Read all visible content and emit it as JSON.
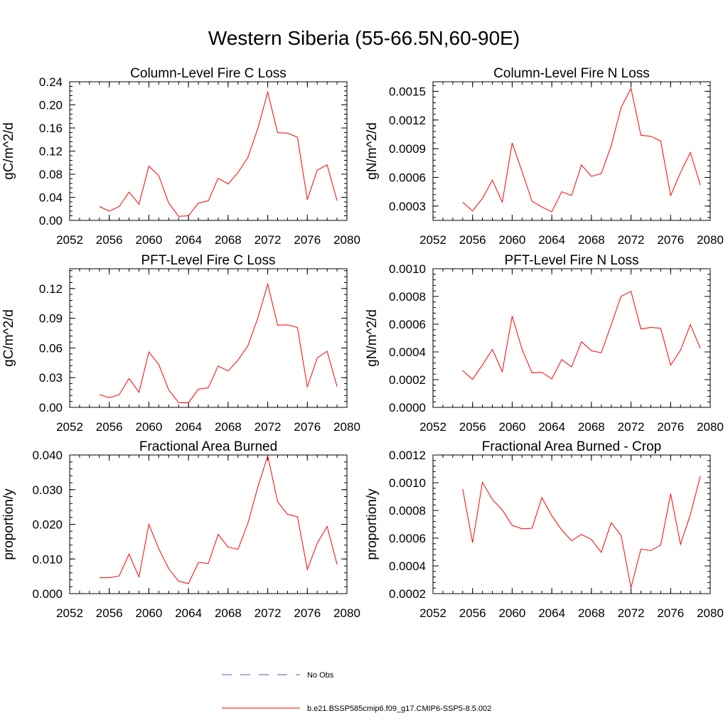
{
  "page": {
    "title": "Western Siberia (55-66.5N,60-90E)"
  },
  "colors": {
    "model": "#ff0000",
    "obs": "#5555aa",
    "axis": "#000000"
  },
  "legend": {
    "obs_label": "No Obs",
    "model_label": "b.e21.BSSP585cmip6.f09_g17.CMIP6-SSP5-8.5.002"
  },
  "chart_data": [
    {
      "type": "line",
      "title": "Column-Level Fire C Loss",
      "xlabel": "",
      "ylabel": "gC/m^2/d",
      "xlim": [
        2052,
        2080
      ],
      "ylim": [
        0,
        0.24
      ],
      "xticks": [
        2052,
        2056,
        2060,
        2064,
        2068,
        2072,
        2076,
        2080
      ],
      "yticks": [
        0,
        0.04,
        0.08,
        0.12,
        0.16,
        0.2,
        0.24
      ],
      "yticklabels": [
        "0.00",
        "0.04",
        "0.08",
        "0.12",
        "0.16",
        "0.20",
        "0.24"
      ],
      "x": [
        2055,
        2056,
        2057,
        2058,
        2059,
        2060,
        2061,
        2062,
        2063,
        2064,
        2065,
        2066,
        2067,
        2068,
        2069,
        2070,
        2071,
        2072,
        2073,
        2074,
        2075,
        2076,
        2077,
        2078,
        2079
      ],
      "series": [
        {
          "name": "b.e21.BSSP585cmip6.f09_g17.CMIP6-SSP5-8.5.002",
          "values": [
            0.024,
            0.016,
            0.024,
            0.049,
            0.028,
            0.094,
            0.077,
            0.03,
            0.007,
            0.008,
            0.03,
            0.034,
            0.073,
            0.063,
            0.083,
            0.109,
            0.159,
            0.222,
            0.152,
            0.151,
            0.144,
            0.036,
            0.087,
            0.096,
            0.034
          ]
        }
      ]
    },
    {
      "type": "line",
      "title": "Column-Level Fire N Loss",
      "xlabel": "",
      "ylabel": "gN/m^2/d",
      "xlim": [
        2052,
        2080
      ],
      "ylim": [
        0.00015,
        0.0016
      ],
      "xticks": [
        2052,
        2056,
        2060,
        2064,
        2068,
        2072,
        2076,
        2080
      ],
      "yticks": [
        0.0003,
        0.0006,
        0.0009,
        0.0012,
        0.0015
      ],
      "yticklabels": [
        "0.0003",
        "0.0006",
        "0.0009",
        "0.0012",
        "0.0015"
      ],
      "x": [
        2055,
        2056,
        2057,
        2058,
        2059,
        2060,
        2061,
        2062,
        2063,
        2064,
        2065,
        2066,
        2067,
        2068,
        2069,
        2070,
        2071,
        2072,
        2073,
        2074,
        2075,
        2076,
        2077,
        2078,
        2079
      ],
      "series": [
        {
          "name": "b.e21.BSSP585cmip6.f09_g17.CMIP6-SSP5-8.5.002",
          "values": [
            0.00034,
            0.00025,
            0.00038,
            0.00057,
            0.00034,
            0.00096,
            0.00066,
            0.00035,
            0.00029,
            0.00024,
            0.00045,
            0.00041,
            0.00073,
            0.00061,
            0.00064,
            0.00093,
            0.00133,
            0.00153,
            0.00104,
            0.00103,
            0.00098,
            0.00041,
            0.00065,
            0.00086,
            0.00052
          ]
        }
      ]
    },
    {
      "type": "line",
      "title": "PFT-Level Fire C Loss",
      "xlabel": "",
      "ylabel": "gC/m^2/d",
      "xlim": [
        2052,
        2080
      ],
      "ylim": [
        0,
        0.14
      ],
      "xticks": [
        2052,
        2056,
        2060,
        2064,
        2068,
        2072,
        2076,
        2080
      ],
      "yticks": [
        0,
        0.03,
        0.06,
        0.09,
        0.12
      ],
      "yticklabels": [
        "0.00",
        "0.03",
        "0.06",
        "0.09",
        "0.12"
      ],
      "x": [
        2055,
        2056,
        2057,
        2058,
        2059,
        2060,
        2061,
        2062,
        2063,
        2064,
        2065,
        2066,
        2067,
        2068,
        2069,
        2070,
        2071,
        2072,
        2073,
        2074,
        2075,
        2076,
        2077,
        2078,
        2079
      ],
      "series": [
        {
          "name": "b.e21.BSSP585cmip6.f09_g17.CMIP6-SSP5-8.5.002",
          "values": [
            0.0128,
            0.0098,
            0.0128,
            0.0292,
            0.0152,
            0.056,
            0.0432,
            0.0176,
            0.0048,
            0.0046,
            0.0184,
            0.0198,
            0.0418,
            0.0367,
            0.0478,
            0.0622,
            0.09,
            0.1245,
            0.083,
            0.0833,
            0.0808,
            0.0205,
            0.05,
            0.0567,
            0.021
          ]
        }
      ]
    },
    {
      "type": "line",
      "title": "PFT-Level Fire N Loss",
      "xlabel": "",
      "ylabel": "gN/m^2/d",
      "xlim": [
        2052,
        2080
      ],
      "ylim": [
        0,
        0.001
      ],
      "xticks": [
        2052,
        2056,
        2060,
        2064,
        2068,
        2072,
        2076,
        2080
      ],
      "yticks": [
        0,
        0.0002,
        0.0004,
        0.0006,
        0.0008,
        0.001
      ],
      "yticklabels": [
        "0.0000",
        "0.0002",
        "0.0004",
        "0.0006",
        "0.0008",
        "0.0010"
      ],
      "x": [
        2055,
        2056,
        2057,
        2058,
        2059,
        2060,
        2061,
        2062,
        2063,
        2064,
        2065,
        2066,
        2067,
        2068,
        2069,
        2070,
        2071,
        2072,
        2073,
        2074,
        2075,
        2076,
        2077,
        2078,
        2079
      ],
      "series": [
        {
          "name": "b.e21.BSSP585cmip6.f09_g17.CMIP6-SSP5-8.5.002",
          "values": [
            0.000265,
            0.000202,
            0.000306,
            0.000418,
            0.000258,
            0.000658,
            0.000418,
            0.00025,
            0.000253,
            0.000205,
            0.000345,
            0.000292,
            0.000474,
            0.000408,
            0.000394,
            0.000596,
            0.000801,
            0.000837,
            0.000565,
            0.000577,
            0.000571,
            0.000304,
            0.000413,
            0.000597,
            0.000426
          ]
        }
      ]
    },
    {
      "type": "line",
      "title": "Fractional Area Burned",
      "xlabel": "",
      "ylabel": "proportion/y",
      "xlim": [
        2052,
        2080
      ],
      "ylim": [
        0,
        0.04
      ],
      "xticks": [
        2052,
        2056,
        2060,
        2064,
        2068,
        2072,
        2076,
        2080
      ],
      "yticks": [
        0,
        0.01,
        0.02,
        0.03,
        0.04
      ],
      "yticklabels": [
        "0.000",
        "0.010",
        "0.020",
        "0.030",
        "0.040"
      ],
      "x": [
        2055,
        2056,
        2057,
        2058,
        2059,
        2060,
        2061,
        2062,
        2063,
        2064,
        2065,
        2066,
        2067,
        2068,
        2069,
        2070,
        2071,
        2072,
        2073,
        2074,
        2075,
        2076,
        2077,
        2078,
        2079
      ],
      "series": [
        {
          "name": "b.e21.BSSP585cmip6.f09_g17.CMIP6-SSP5-8.5.002",
          "values": [
            0.0046,
            0.0046,
            0.0051,
            0.0114,
            0.0048,
            0.02,
            0.0129,
            0.0072,
            0.0036,
            0.0029,
            0.009,
            0.0087,
            0.0171,
            0.0134,
            0.0128,
            0.0203,
            0.0307,
            0.0398,
            0.0265,
            0.0229,
            0.0222,
            0.007,
            0.0145,
            0.0194,
            0.0084
          ]
        }
      ]
    },
    {
      "type": "line",
      "title": "Fractional Area Burned - Crop",
      "xlabel": "",
      "ylabel": "proportion/y",
      "xlim": [
        2052,
        2080
      ],
      "ylim": [
        0.0002,
        0.0012
      ],
      "xticks": [
        2052,
        2056,
        2060,
        2064,
        2068,
        2072,
        2076,
        2080
      ],
      "yticks": [
        0.0002,
        0.0004,
        0.0006,
        0.0008,
        0.001,
        0.0012
      ],
      "yticklabels": [
        "0.0002",
        "0.0004",
        "0.0006",
        "0.0008",
        "0.0010",
        "0.0012"
      ],
      "x": [
        2055,
        2056,
        2057,
        2058,
        2059,
        2060,
        2061,
        2062,
        2063,
        2064,
        2065,
        2066,
        2067,
        2068,
        2069,
        2070,
        2071,
        2072,
        2073,
        2074,
        2075,
        2076,
        2077,
        2078,
        2079
      ],
      "series": [
        {
          "name": "b.e21.BSSP585cmip6.f09_g17.CMIP6-SSP5-8.5.002",
          "values": [
            0.000955,
            0.000568,
            0.001003,
            0.000879,
            0.000804,
            0.000693,
            0.000667,
            0.000672,
            0.000893,
            0.000763,
            0.000659,
            0.000582,
            0.000627,
            0.00059,
            0.000498,
            0.000712,
            0.00062,
            0.000243,
            0.000521,
            0.00051,
            0.000551,
            0.00092,
            0.000556,
            0.000771,
            0.001047
          ]
        }
      ]
    }
  ]
}
